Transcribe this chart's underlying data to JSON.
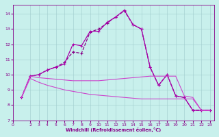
{
  "xlabel": "Windchill (Refroidissement éolien,°C)",
  "bg_color": "#c8f0ec",
  "grid_color": "#a0cccc",
  "color1": "#880088",
  "color2": "#aa00aa",
  "color3": "#cc44cc",
  "color4": "#cc44cc",
  "xlim": [
    0,
    23.5
  ],
  "ylim": [
    7,
    14.6
  ],
  "yticks": [
    7,
    8,
    9,
    10,
    11,
    12,
    13,
    14
  ],
  "xticks": [
    0,
    2,
    3,
    4,
    5,
    6,
    7,
    8,
    9,
    10,
    11,
    12,
    13,
    14,
    15,
    16,
    17,
    18,
    19,
    20,
    21,
    22,
    23
  ],
  "s1_x": [
    1,
    2,
    3,
    4,
    5,
    6,
    7,
    8,
    9,
    10,
    11,
    12,
    13,
    14,
    15,
    16,
    17,
    18,
    19,
    20,
    21,
    22,
    23
  ],
  "s1_y": [
    8.5,
    9.9,
    10.0,
    10.3,
    10.5,
    10.8,
    11.5,
    11.4,
    12.8,
    13.0,
    13.4,
    13.8,
    14.2,
    13.3,
    13.0,
    10.5,
    9.3,
    10.0,
    8.6,
    8.5,
    7.65,
    7.65,
    7.65
  ],
  "s2_x": [
    1,
    2,
    3,
    4,
    5,
    6,
    7,
    8,
    9,
    10,
    11,
    12,
    13,
    14,
    15,
    16,
    17,
    18,
    19,
    20,
    21,
    22,
    23
  ],
  "s2_y": [
    8.5,
    9.9,
    10.0,
    10.3,
    10.5,
    10.7,
    12.0,
    11.9,
    12.85,
    12.85,
    13.45,
    13.8,
    14.25,
    13.3,
    13.0,
    10.5,
    9.3,
    10.0,
    8.6,
    8.5,
    7.65,
    7.65,
    7.65
  ],
  "s3_x": [
    1,
    2,
    3,
    4,
    5,
    6,
    7,
    8,
    9,
    10,
    11,
    12,
    13,
    14,
    15,
    16,
    17,
    18,
    19,
    20,
    21,
    22,
    23
  ],
  "s3_y": [
    8.5,
    9.9,
    9.8,
    9.75,
    9.7,
    9.65,
    9.6,
    9.6,
    9.6,
    9.6,
    9.65,
    9.7,
    9.75,
    9.8,
    9.85,
    9.9,
    9.9,
    9.9,
    9.9,
    8.6,
    8.5,
    7.65,
    7.65
  ],
  "s4_x": [
    1,
    2,
    3,
    4,
    5,
    6,
    7,
    8,
    9,
    10,
    11,
    12,
    13,
    14,
    15,
    16,
    17,
    18,
    19,
    20,
    21,
    22,
    23
  ],
  "s4_y": [
    8.5,
    9.75,
    9.5,
    9.3,
    9.15,
    9.0,
    8.9,
    8.8,
    8.7,
    8.65,
    8.6,
    8.55,
    8.5,
    8.45,
    8.4,
    8.4,
    8.4,
    8.4,
    8.4,
    8.4,
    8.4,
    7.65,
    7.65
  ]
}
